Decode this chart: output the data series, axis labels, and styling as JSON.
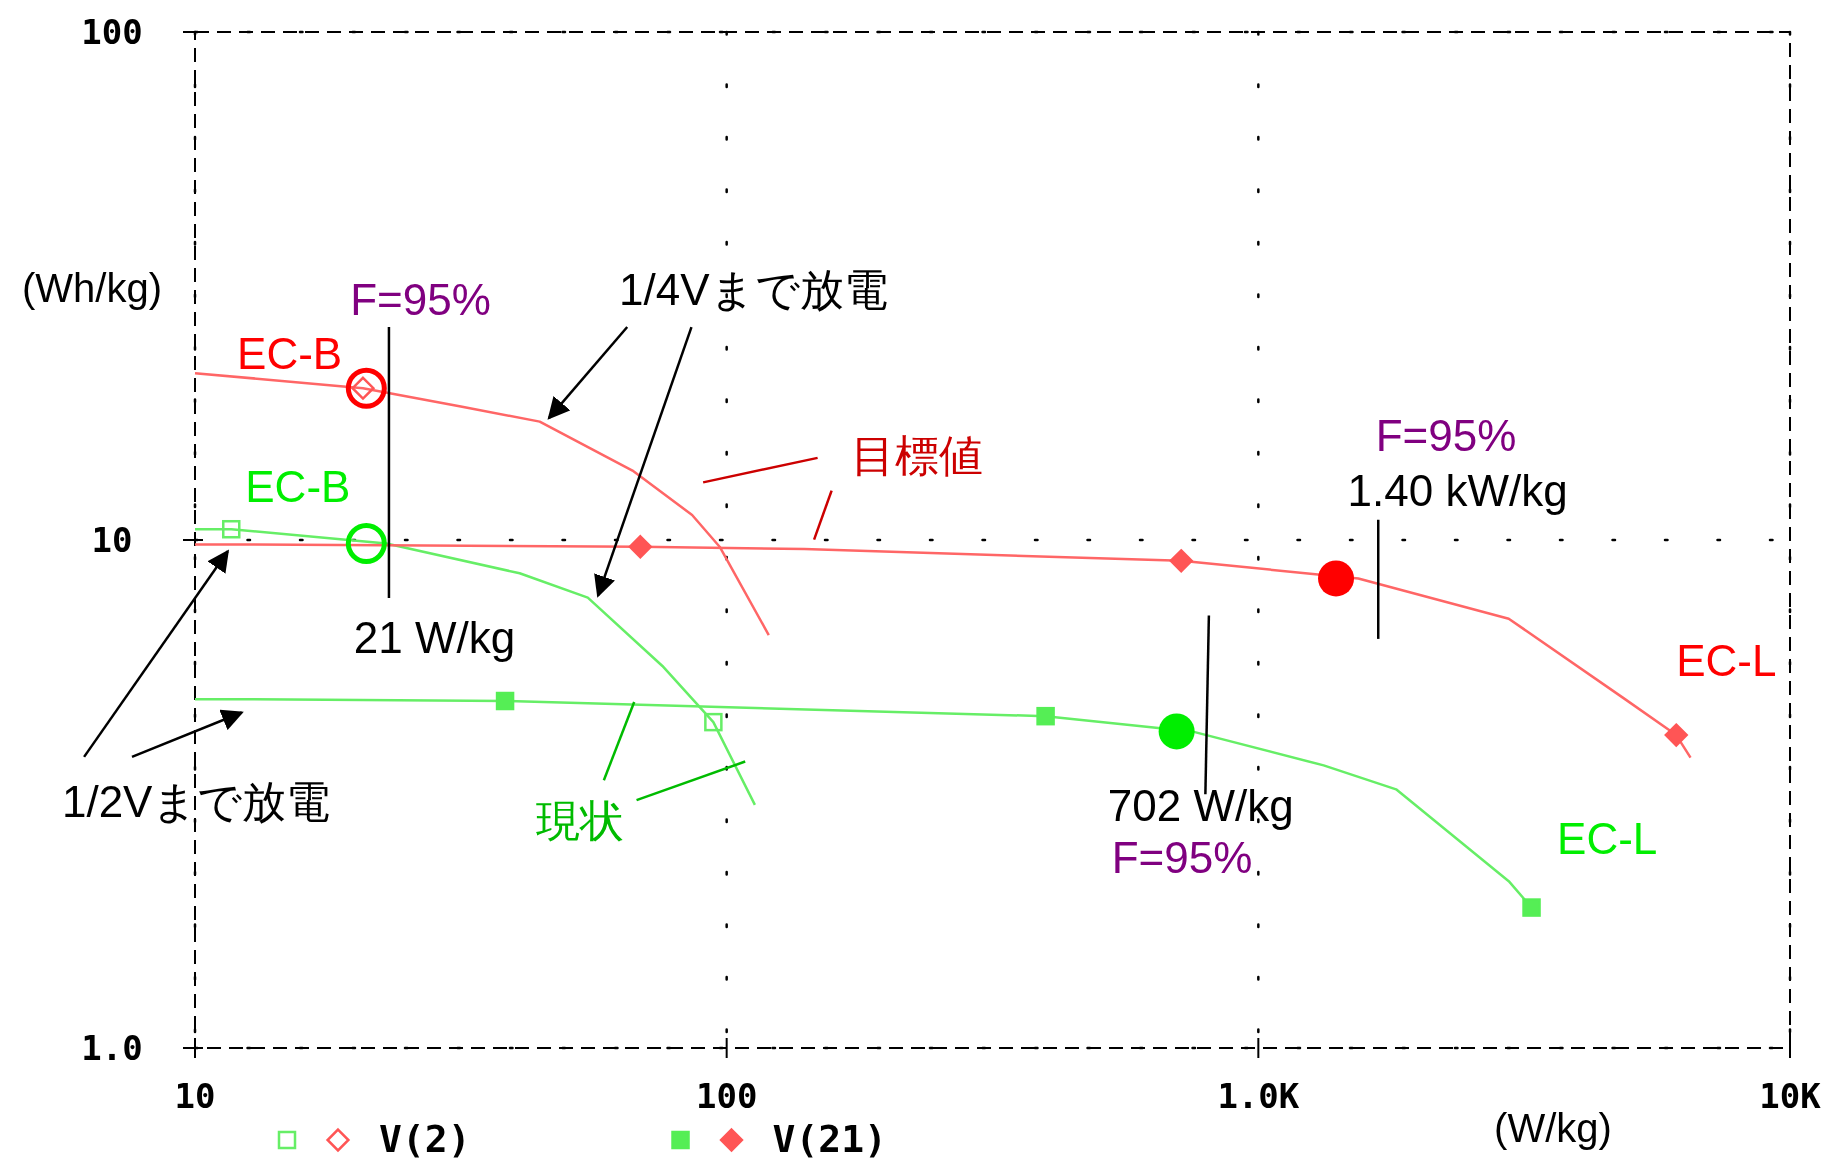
{
  "chart_data": {
    "type": "line",
    "xlabel": "(W/kg)",
    "ylabel": "(Wh/kg)",
    "log": "xy",
    "grid": true,
    "legend": "bottom",
    "xlim": [
      10,
      10000
    ],
    "ylim": [
      1,
      100
    ],
    "xticks": [
      10,
      100,
      {
        "value": 1000,
        "label": "1.0K"
      },
      {
        "value": 10000,
        "label": "10K"
      }
    ],
    "yticks": [
      {
        "value": 1,
        "label": "1.0"
      },
      10,
      100
    ],
    "series": [
      {
        "color": "#ff6666",
        "x": [
          10,
          20.7,
          31.8,
          44.5,
          66.5,
          86.1,
          97,
          120
        ],
        "values": [
          21.3,
          19.9,
          18.3,
          17.1,
          13.7,
          11.2,
          9.7,
          6.5
        ]
      },
      {
        "color": "#66ee66",
        "x": [
          10,
          11.7,
          22.9,
          40.8,
          54.8,
          75.7,
          94.4,
          113
        ],
        "values": [
          10.5,
          10.5,
          9.84,
          8.6,
          7.7,
          5.65,
          4.38,
          3.01
        ]
      },
      {
        "color": "#ff6666",
        "x": [
          10,
          11.5,
          68.8,
          140,
          716,
          1542,
          2958,
          4840,
          6110,
          6500
        ],
        "values": [
          9.8,
          9.8,
          9.7,
          9.6,
          9.1,
          8.4,
          7.0,
          4.9,
          4.13,
          3.73
        ]
      },
      {
        "color": "#66ee66",
        "x": [
          10,
          12.1,
          38.3,
          398,
          750,
          1327,
          1816,
          2958,
          3265
        ],
        "values": [
          4.86,
          4.86,
          4.82,
          4.5,
          4.2,
          3.6,
          3.23,
          2.13,
          1.89
        ]
      },
      {
        "type": "scatter",
        "color": "#66ee66",
        "marker": "square",
        "x": [
          11.7,
          94.4
        ],
        "values": [
          10.5,
          4.38
        ]
      },
      {
        "type": "scatter",
        "name": "V(2)",
        "color": "#ff5555",
        "marker": "diamond",
        "x": [
          20.7
        ],
        "values": [
          19.9
        ]
      },
      {
        "type": "scatter",
        "color": "#55ee55",
        "marker": "square",
        "x": [
          38.3,
          398,
          3265
        ],
        "values": [
          4.82,
          4.5,
          1.89
        ]
      },
      {
        "type": "scatter",
        "name": "V(21)",
        "color": "#ff5555",
        "marker": "diamond",
        "x": [
          68.8,
          716,
          6110
        ],
        "values": [
          9.7,
          9.1,
          4.13
        ]
      },
      {
        "type": "scatter",
        "color": "#ff0000",
        "marker": "circle",
        "x": [
          21
        ],
        "values": [
          19.9
        ]
      },
      {
        "type": "scatter",
        "color": "#00ee00",
        "marker": "circle",
        "x": [
          21
        ],
        "values": [
          9.84
        ]
      },
      {
        "type": "scatter",
        "color": "#ff0000",
        "marker": "circle",
        "x": [
          1400
        ],
        "values": [
          8.4
        ]
      },
      {
        "type": "scatter",
        "color": "#00ee00",
        "marker": "circle",
        "x": [
          702
        ],
        "values": [
          4.2
        ]
      }
    ],
    "annotations": [
      "F=95%",
      "EC-B",
      "EC-B",
      "21 W/kg",
      "1/4Vまで放電",
      "目標値",
      "F=95%",
      "1.40 kW/kg",
      "EC-L",
      "1/2Vまで放電",
      {
        "text": "現状",
        "x": 67,
        "y": 4.8
      },
      "702 W/kg",
      "F=95%",
      "EC-L"
    ]
  }
}
